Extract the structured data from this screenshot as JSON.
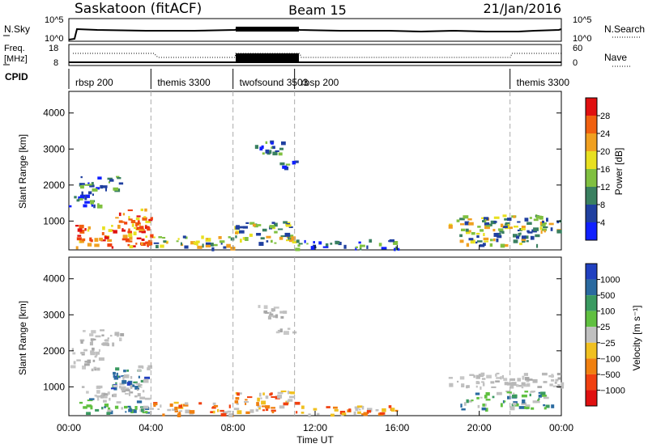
{
  "header": {
    "station": "Saskatoon (fitACF)",
    "beam": "Beam 15",
    "date": "21/Jan/2016"
  },
  "status_panels": {
    "nsky_label": "N.Sky",
    "nsky_ticks": [
      "10^5",
      "10^0"
    ],
    "nsearch_label": "N.Search",
    "nsearch_ticks": [
      "10^5",
      "10^0"
    ],
    "freq_label_1": "Freq.",
    "freq_label_2": "[MHz]",
    "freq_ticks": [
      "18",
      "8"
    ],
    "nave_label": "Nave",
    "nave_ticks": [
      "60",
      "0"
    ],
    "cpid_label": "CPID"
  },
  "cpid_segments": [
    {
      "start_hour": 0.0,
      "label": "rbsp 200"
    },
    {
      "start_hour": 4.0,
      "label": "themis 3300"
    },
    {
      "start_hour": 8.0,
      "label": "twofsound 3503"
    },
    {
      "start_hour": 11.0,
      "label": "rbsp 200"
    },
    {
      "start_hour": 21.5,
      "label": "themis 3300"
    }
  ],
  "chart_data": [
    {
      "type": "heatmap",
      "name": "power",
      "ylabel": "Slant Range [km]",
      "yticks": [
        "1000",
        "2000",
        "3000",
        "4000"
      ],
      "ylim": [
        200,
        4600
      ],
      "xlim": [
        0,
        24
      ],
      "colorbar": {
        "label": "Power [dB]",
        "ticks": [
          "4",
          "8",
          "12",
          "16",
          "20",
          "24",
          "28"
        ],
        "colors": [
          "#1020ff",
          "#2040a0",
          "#3a8060",
          "#80c040",
          "#e8e020",
          "#f0a020",
          "#f06010",
          "#e01010"
        ]
      },
      "regions": [
        {
          "hours": [
            0.0,
            1.5
          ],
          "range_km": [
            1400,
            1900
          ],
          "level": "low"
        },
        {
          "hours": [
            0.5,
            2.5
          ],
          "range_km": [
            1900,
            2300
          ],
          "level": "low"
        },
        {
          "hours": [
            0.3,
            4.0
          ],
          "range_km": [
            300,
            900
          ],
          "level": "high"
        },
        {
          "hours": [
            2.0,
            4.0
          ],
          "range_km": [
            800,
            1400
          ],
          "level": "high"
        },
        {
          "hours": [
            4.0,
            8.0
          ],
          "range_km": [
            250,
            600
          ],
          "level": "mid"
        },
        {
          "hours": [
            8.0,
            11.0
          ],
          "range_km": [
            400,
            1000
          ],
          "level": "mid"
        },
        {
          "hours": [
            9.0,
            10.5
          ],
          "range_km": [
            2900,
            3300
          ],
          "level": "low"
        },
        {
          "hours": [
            10.0,
            11.0
          ],
          "range_km": [
            2500,
            2700
          ],
          "level": "low"
        },
        {
          "hours": [
            11.0,
            16.0
          ],
          "range_km": [
            250,
            500
          ],
          "level": "low"
        },
        {
          "hours": [
            18.5,
            24.0
          ],
          "range_km": [
            700,
            1200
          ],
          "level": "mid"
        },
        {
          "hours": [
            19.0,
            23.0
          ],
          "range_km": [
            350,
            700
          ],
          "level": "mid"
        }
      ]
    },
    {
      "type": "heatmap",
      "name": "velocity",
      "ylabel": "Slant Range [km]",
      "yticks": [
        "1000",
        "2000",
        "3000",
        "4000"
      ],
      "ylim": [
        200,
        4600
      ],
      "xlim": [
        0,
        24
      ],
      "xlabel": "Time UT",
      "xticks": [
        "00:00",
        "04:00",
        "08:00",
        "12:00",
        "16:00",
        "20:00",
        "00:00"
      ],
      "colorbar": {
        "label": "Velocity [m s⁻¹]",
        "ticks": [
          "1000",
          "500",
          "100",
          "25",
          "−25",
          "−100",
          "−500",
          "−1000"
        ],
        "colors": [
          "#2040c0",
          "#2a6aa0",
          "#3a9a60",
          "#60c040",
          "#c0c0c0",
          "#f0c020",
          "#f08010",
          "#f04010",
          "#e01010"
        ]
      },
      "regions": [
        {
          "hours": [
            0.0,
            1.5
          ],
          "range_km": [
            1500,
            2100
          ],
          "level": "gray"
        },
        {
          "hours": [
            0.5,
            2.5
          ],
          "range_km": [
            2100,
            2600
          ],
          "level": "gray"
        },
        {
          "hours": [
            0.5,
            4.0
          ],
          "range_km": [
            300,
            700
          ],
          "level": "green"
        },
        {
          "hours": [
            2.0,
            4.0
          ],
          "range_km": [
            900,
            1600
          ],
          "level": "blue"
        },
        {
          "hours": [
            0.5,
            3.5
          ],
          "range_km": [
            700,
            1100
          ],
          "level": "gray"
        },
        {
          "hours": [
            4.0,
            8.0
          ],
          "range_km": [
            250,
            600
          ],
          "level": "orange"
        },
        {
          "hours": [
            8.0,
            11.0
          ],
          "range_km": [
            300,
            900
          ],
          "level": "orange"
        },
        {
          "hours": [
            9.0,
            10.5
          ],
          "range_km": [
            2900,
            3300
          ],
          "level": "gray"
        },
        {
          "hours": [
            10.0,
            11.0
          ],
          "range_km": [
            2500,
            2700
          ],
          "level": "gray"
        },
        {
          "hours": [
            11.0,
            16.0
          ],
          "range_km": [
            250,
            500
          ],
          "level": "orange"
        },
        {
          "hours": [
            18.5,
            24.0
          ],
          "range_km": [
            1000,
            1400
          ],
          "level": "gray"
        },
        {
          "hours": [
            19.0,
            23.5
          ],
          "range_km": [
            400,
            900
          ],
          "level": "green"
        }
      ]
    }
  ]
}
